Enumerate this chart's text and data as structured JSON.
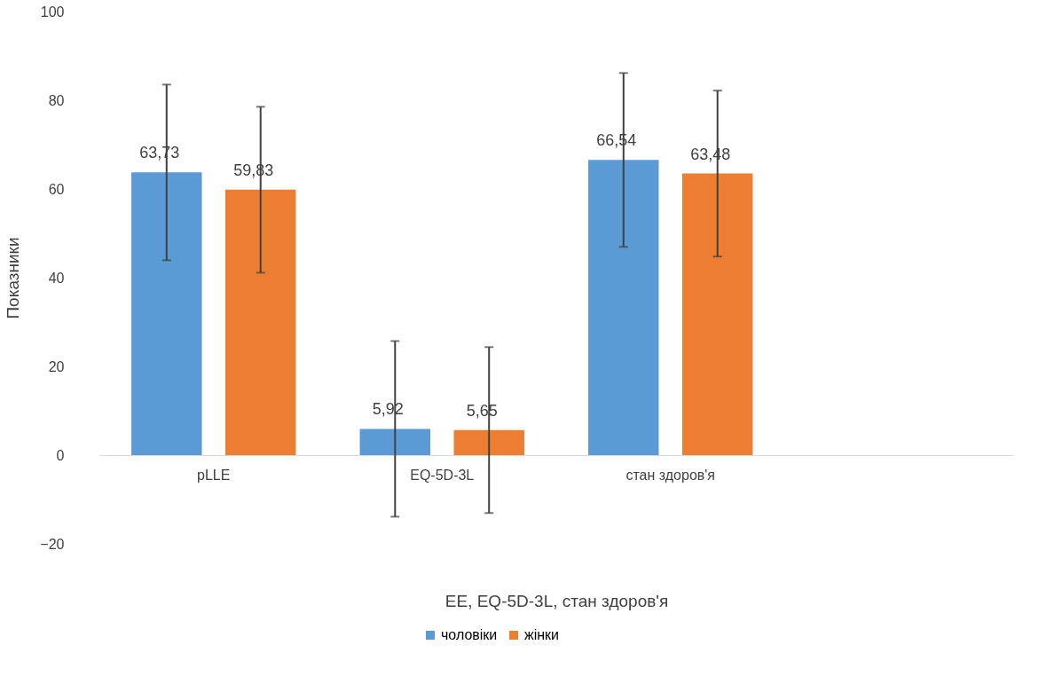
{
  "chart_data": {
    "type": "bar",
    "xlabel": "EE, EQ-5D-3L, стан здоров'я",
    "ylabel": "Показники",
    "categories": [
      "pLLE",
      "EQ-5D-3L",
      "стан здоров'я",
      null
    ],
    "series": [
      {
        "name": "чоловіки",
        "color": "#5b9bd5",
        "values": [
          63.73,
          5.92,
          66.54,
          null
        ],
        "errors": [
          19.8,
          19.8,
          19.6,
          null
        ],
        "value_labels": [
          "63,73",
          "5,92",
          "66,54",
          null
        ]
      },
      {
        "name": "жінки",
        "color": "#ed7d31",
        "values": [
          59.83,
          5.65,
          63.48,
          null
        ],
        "errors": [
          18.7,
          18.7,
          18.7,
          null
        ],
        "value_labels": [
          "59,83",
          "5,65",
          "63,48",
          null
        ]
      }
    ],
    "ylim": [
      -20,
      100
    ],
    "yticks": [
      -20,
      0,
      20,
      40,
      60,
      80,
      100
    ],
    "grid": false,
    "legend": "bottom"
  }
}
